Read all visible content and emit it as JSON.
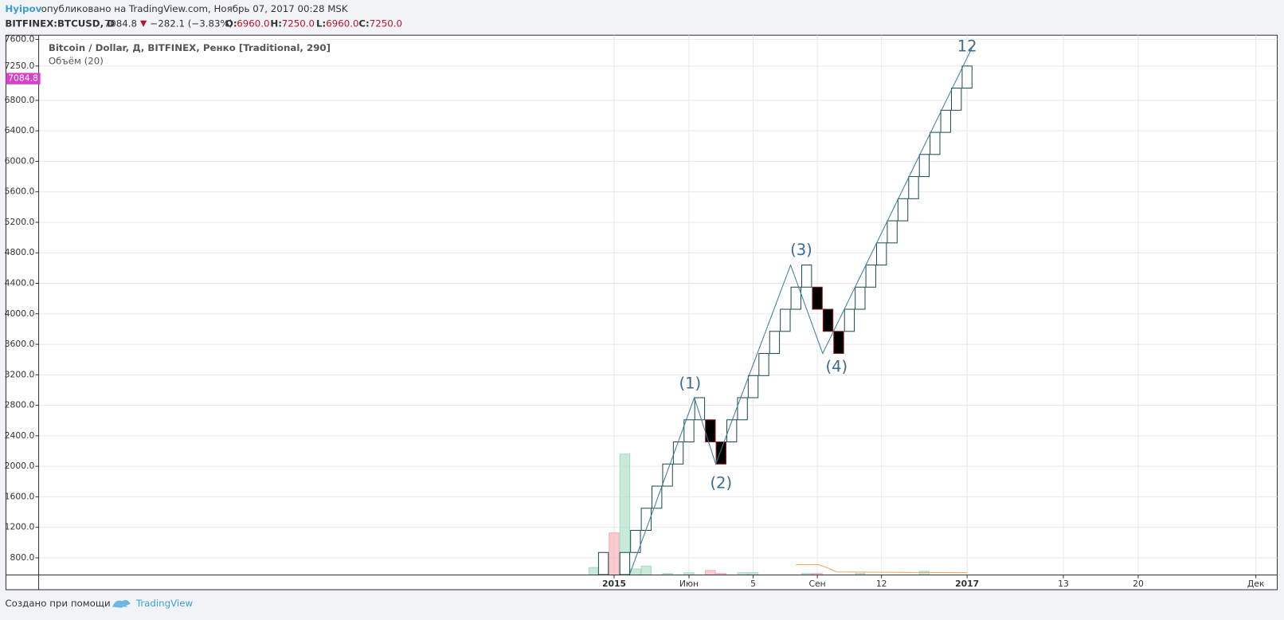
{
  "header": {
    "author": "Hyipov",
    "published": "опубликовано на TradingView.com, Ноябрь 07, 2017 00:28 MSK",
    "symbol": "BITFINEX:BTCUSD, D",
    "price": "7084.8",
    "change": "−282.1 (−3.83%)",
    "o_label": "O:",
    "o": "6960.0",
    "h_label": "H:",
    "h": "7250.0",
    "l_label": "L:",
    "l": "6960.0",
    "c_label": "C:",
    "c": "7250.0"
  },
  "chart_data": {
    "type": "renko",
    "title": "Bitcoin / Dollar, Д, BITFINEX, Ренко [Traditional, 290]",
    "subtitle": "Объём (20)",
    "last_price": 7084.8,
    "ylim": [
      575,
      7654
    ],
    "yticks": [
      {
        "value": 800,
        "label": "800.0"
      },
      {
        "value": 1200,
        "label": "1200.0"
      },
      {
        "value": 1600,
        "label": "1600.0"
      },
      {
        "value": 2000,
        "label": "2000.0"
      },
      {
        "value": 2400,
        "label": "2400.0"
      },
      {
        "value": 2800,
        "label": "2800.0"
      },
      {
        "value": 3200,
        "label": "3200.0"
      },
      {
        "value": 3600,
        "label": "3600.0"
      },
      {
        "value": 4000,
        "label": "4000.0"
      },
      {
        "value": 4400,
        "label": "4400.0"
      },
      {
        "value": 4800,
        "label": "4800.0"
      },
      {
        "value": 5200,
        "label": "5200.0"
      },
      {
        "value": 5600,
        "label": "5600.0"
      },
      {
        "value": 6000,
        "label": "6000.0"
      },
      {
        "value": 6400,
        "label": "6400.0"
      },
      {
        "value": 6800,
        "label": "6800.0"
      },
      {
        "value": 7250,
        "label": "7250.0"
      },
      {
        "value": 7600,
        "label": "7600.0"
      }
    ],
    "xlim": [
      -52.8,
      63
    ],
    "xticks": [
      {
        "value": 1,
        "label": "2015"
      },
      {
        "value": 8,
        "label": "Июн"
      },
      {
        "value": 14,
        "label": "5"
      },
      {
        "value": 20,
        "label": "Сен"
      },
      {
        "value": 26,
        "label": "12"
      },
      {
        "value": 34,
        "label": "2017"
      },
      {
        "value": 43,
        "label": "13"
      },
      {
        "value": 50,
        "label": "20"
      },
      {
        "value": 61,
        "label": "Дек"
      }
    ],
    "grid": true,
    "up_color": "#ffffff",
    "down_color": "#000000",
    "border_color": "#1f4d4d",
    "bricks": {
      "x": [
        0,
        2,
        3,
        4,
        5,
        6,
        7,
        8,
        9,
        10,
        11,
        12,
        13,
        14,
        15,
        16,
        17,
        18,
        19,
        20,
        21,
        22,
        23,
        24,
        25,
        26,
        27,
        28,
        29,
        30,
        31,
        32,
        33,
        34
      ],
      "open": [
        580,
        580,
        870,
        1160,
        1450,
        1740,
        2030,
        2320,
        2610,
        2610,
        2320,
        2320,
        2610,
        2900,
        3190,
        3480,
        3770,
        4060,
        4350,
        4350,
        4060,
        3770,
        3770,
        4060,
        4350,
        4640,
        4930,
        5220,
        5510,
        5800,
        6090,
        6380,
        6670,
        6960
      ],
      "close": [
        870,
        870,
        1160,
        1450,
        1740,
        2030,
        2320,
        2610,
        2900,
        2320,
        2030,
        2610,
        2900,
        3190,
        3480,
        3770,
        4060,
        4350,
        4640,
        4060,
        3770,
        3480,
        4060,
        4350,
        4640,
        4930,
        5220,
        5510,
        5800,
        6090,
        6380,
        6670,
        6960,
        7250
      ]
    },
    "volume": {
      "ylim": [
        0,
        200
      ],
      "x": [
        -0.9,
        1,
        2,
        3,
        4,
        6,
        8,
        10,
        11,
        13,
        14,
        19,
        20,
        24,
        30
      ],
      "values": [
        10,
        57,
        164,
        8,
        12,
        2,
        3,
        6,
        2,
        3,
        3,
        2,
        2,
        2,
        5
      ],
      "colors": [
        "#a5dcc1",
        "#f6a9b0",
        "#a5dcc1",
        "#a5dcc1",
        "#a5dcc1",
        "#a5dcc1",
        "#a5dcc1",
        "#f6a9b0",
        "#f6a9b0",
        "#a5dcc1",
        "#a5dcc1",
        "#a5dcc1",
        "#f6a9b0",
        "#a5dcc1",
        "#a5dcc1"
      ],
      "ma": {
        "color": "#f5a55a",
        "x": [
          18,
          20.1,
          20.9,
          21.8,
          34
        ],
        "values": [
          14,
          14,
          10,
          4,
          3
        ]
      }
    },
    "wave_line": {
      "color": "#3a7ca5",
      "x": [
        2.5,
        8.5,
        10.5,
        17.5,
        20.5,
        34.5
      ],
      "values": [
        600,
        2900,
        2030,
        4640,
        3480,
        7500
      ]
    },
    "annotations": [
      {
        "text": "(1)",
        "x": 8.1,
        "y": 3080
      },
      {
        "text": "(2)",
        "x": 11,
        "y": 1770
      },
      {
        "text": "(3)",
        "x": 18.5,
        "y": 4830
      },
      {
        "text": "(4)",
        "x": 21.8,
        "y": 3300
      },
      {
        "text": "12",
        "x": 34,
        "y": 7500
      }
    ],
    "footer": "Создано при помощи",
    "brand": "TradingView"
  }
}
